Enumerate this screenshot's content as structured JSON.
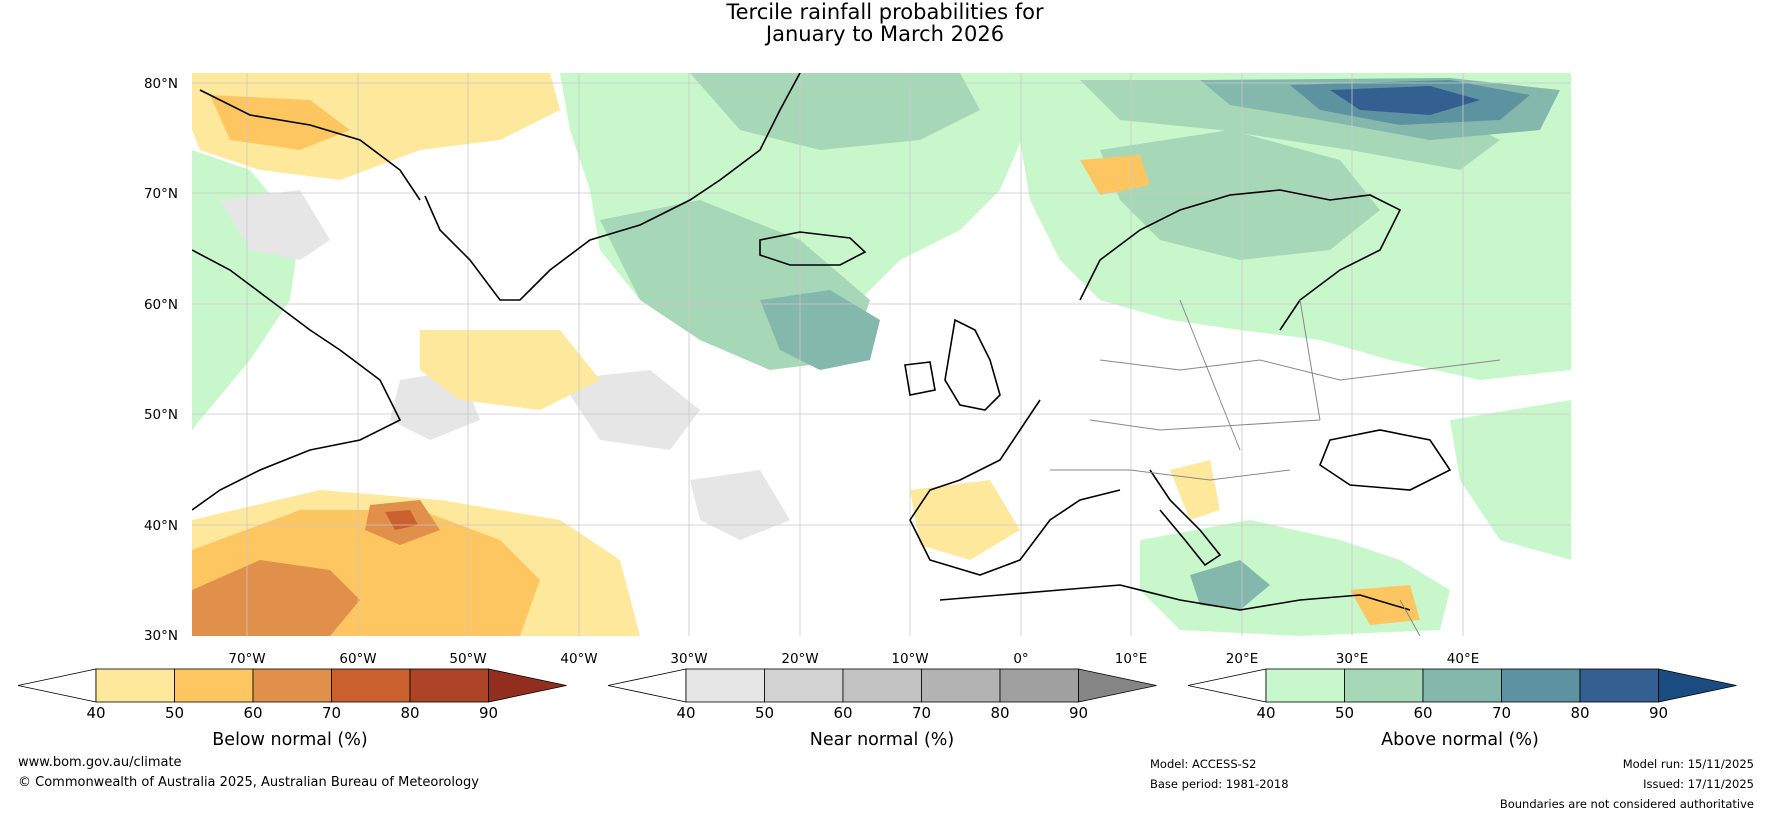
{
  "title": {
    "line1": "Tercile rainfall probabilities for",
    "line2": "January to March 2026"
  },
  "map": {
    "lat_labels": [
      "80°N",
      "70°N",
      "60°N",
      "50°N",
      "40°N",
      "30°N"
    ],
    "lon_labels": [
      "70°W",
      "60°W",
      "50°W",
      "40°W",
      "30°W",
      "20°W",
      "10°W",
      "0°",
      "10°E",
      "20°E",
      "30°E",
      "40°E"
    ]
  },
  "colorbars": [
    {
      "label": "Below normal (%)",
      "ticks": [
        "40",
        "50",
        "60",
        "70",
        "80",
        "90"
      ],
      "colors": [
        "#ffffff",
        "#fee89b",
        "#fdc661",
        "#e0904a",
        "#c9602e",
        "#ad4427",
        "#922e1d"
      ]
    },
    {
      "label": "Near normal (%)",
      "ticks": [
        "40",
        "50",
        "60",
        "70",
        "80",
        "90"
      ],
      "colors": [
        "#ffffff",
        "#e6e6e6",
        "#d2d2d2",
        "#c3c3c3",
        "#b3b3b3",
        "#a0a0a0",
        "#858585"
      ]
    },
    {
      "label": "Above normal (%)",
      "ticks": [
        "40",
        "50",
        "60",
        "70",
        "80",
        "90"
      ],
      "colors": [
        "#ffffff",
        "#c9f7cc",
        "#a6d8b7",
        "#84b8ad",
        "#5d93a0",
        "#335f91",
        "#1a4c82"
      ]
    }
  ],
  "footer": {
    "website": "www.bom.gov.au/climate",
    "copyright": "© Commonwealth of Australia 2025, Australian Bureau of Meteorology",
    "model": "Model: ACCESS-S2",
    "base_period": "Base period: 1981-2018",
    "model_run": "Model run: 15/11/2025",
    "issued": "Issued: 17/11/2025",
    "disclaimer": "Boundaries are not considered authoritative"
  }
}
